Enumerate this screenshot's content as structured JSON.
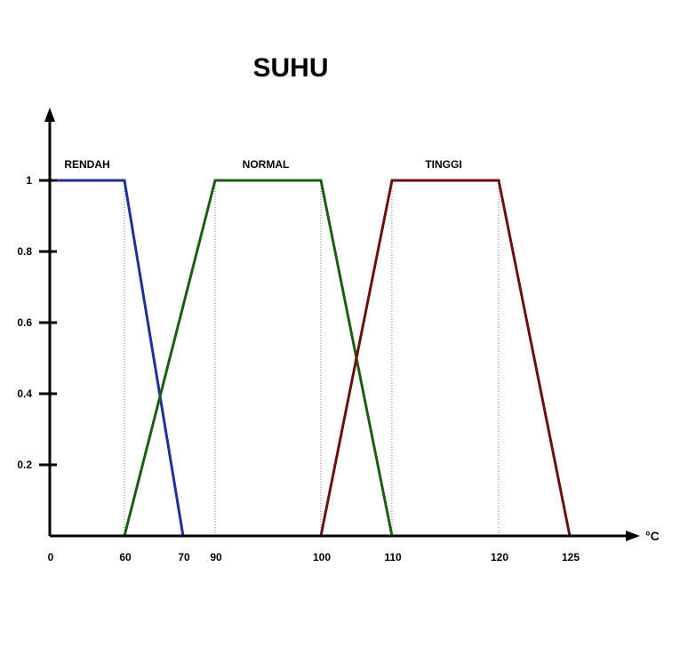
{
  "chart_data": {
    "type": "line",
    "title": "SUHU",
    "xlabel": "°C",
    "ylabel": "",
    "x_ticks": [
      0,
      60,
      70,
      90,
      100,
      110,
      120,
      125
    ],
    "y_ticks": [
      0.2,
      0.4,
      0.6,
      0.8,
      1
    ],
    "ylim": [
      0,
      1
    ],
    "grid": false,
    "series": [
      {
        "name": "RENDAH",
        "color": "#1f2f9c",
        "x": [
          0,
          60,
          70
        ],
        "y": [
          1,
          1,
          0
        ]
      },
      {
        "name": "NORMAL",
        "color": "#1a5e12",
        "x": [
          60,
          90,
          100,
          110
        ],
        "y": [
          0,
          1,
          1,
          0
        ]
      },
      {
        "name": "TINGGI",
        "color": "#6b1010",
        "x": [
          100,
          110,
          120,
          125
        ],
        "y": [
          0,
          1,
          1,
          0
        ]
      }
    ]
  }
}
